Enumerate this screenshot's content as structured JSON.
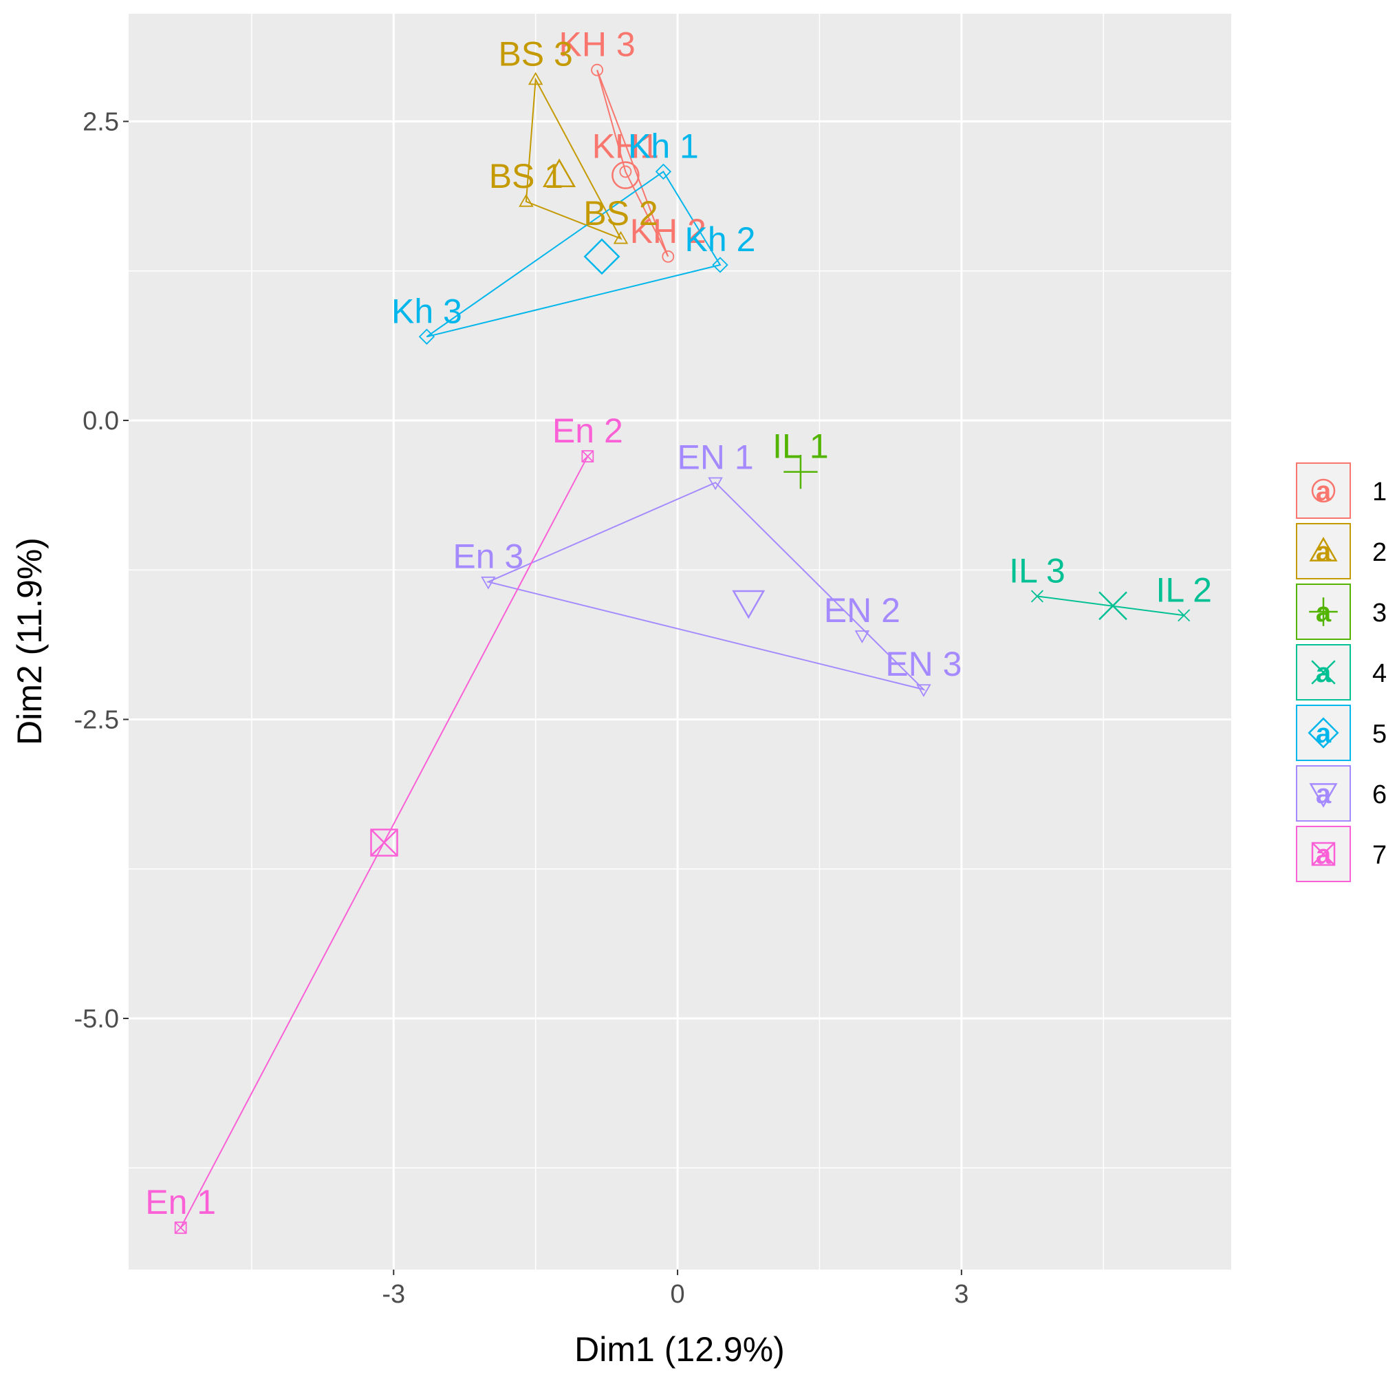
{
  "chart_data": {
    "type": "scatter",
    "title": "",
    "xlabel": "Dim1 (12.9%)",
    "ylabel": "Dim2 (11.9%)",
    "xlim": [
      -5.8,
      5.85
    ],
    "ylim": [
      -7.1,
      3.4
    ],
    "x_ticks": [
      -3,
      0,
      3
    ],
    "y_ticks": [
      2.5,
      0.0,
      -2.5,
      -5.0
    ],
    "x_tick_labels": [
      "-3",
      "0",
      "3"
    ],
    "y_tick_labels": [
      "2.5",
      "0.0",
      "-2.5",
      "-5.0"
    ],
    "grid": true,
    "legend_position": "right",
    "groups": [
      {
        "name": "1",
        "color": "#F8766D",
        "shape": "circle",
        "legend_letter": "a",
        "centroid": {
          "x": -0.55,
          "y": 2.05
        },
        "points": [
          {
            "label": "KH 3",
            "x": -0.85,
            "y": 2.93
          },
          {
            "label": "KH1",
            "x": -0.55,
            "y": 2.08
          },
          {
            "label": "KH 2",
            "x": -0.1,
            "y": 1.37
          }
        ]
      },
      {
        "name": "2",
        "color": "#C49A00",
        "shape": "triangle",
        "legend_letter": "a",
        "centroid": {
          "x": -1.25,
          "y": 2.05
        },
        "points": [
          {
            "label": "BS 3",
            "x": -1.5,
            "y": 2.85
          },
          {
            "label": "BS 1",
            "x": -1.6,
            "y": 1.83
          },
          {
            "label": "BS 2",
            "x": -0.6,
            "y": 1.52
          }
        ]
      },
      {
        "name": "3",
        "color": "#53B400",
        "shape": "plus",
        "legend_letter": "a",
        "centroid": {
          "x": 1.3,
          "y": -0.43
        },
        "points": [
          {
            "label": "IL 1",
            "x": 1.3,
            "y": -0.43
          }
        ]
      },
      {
        "name": "4",
        "color": "#00C094",
        "shape": "cross",
        "legend_letter": "a",
        "centroid": {
          "x": 4.6,
          "y": -1.55
        },
        "points": [
          {
            "label": "IL 3",
            "x": 3.8,
            "y": -1.47
          },
          {
            "label": "IL 2",
            "x": 5.35,
            "y": -1.63
          }
        ]
      },
      {
        "name": "5",
        "color": "#00B6EB",
        "shape": "diamond",
        "legend_letter": "a",
        "centroid": {
          "x": -0.8,
          "y": 1.37
        },
        "points": [
          {
            "label": "Kh 1",
            "x": -0.15,
            "y": 2.08
          },
          {
            "label": "Kh 2",
            "x": 0.45,
            "y": 1.3
          },
          {
            "label": "Kh 3",
            "x": -2.65,
            "y": 0.7
          }
        ]
      },
      {
        "name": "6",
        "color": "#A58AFF",
        "shape": "triangle-down",
        "legend_letter": "a",
        "centroid": {
          "x": 0.75,
          "y": -1.52
        },
        "points": [
          {
            "label": "EN 1",
            "x": 0.4,
            "y": -0.52
          },
          {
            "label": "En 3",
            "x": -2.0,
            "y": -1.35
          },
          {
            "label": "EN 2",
            "x": 1.95,
            "y": -1.8
          },
          {
            "label": "EN 3",
            "x": 2.6,
            "y": -2.25
          }
        ]
      },
      {
        "name": "7",
        "color": "#FB61D7",
        "shape": "square-x",
        "legend_letter": "a",
        "centroid": {
          "x": -3.1,
          "y": -3.53
        },
        "points": [
          {
            "label": "En 2",
            "x": -0.95,
            "y": -0.3
          },
          {
            "label": "En 1",
            "x": -5.25,
            "y": -6.75
          }
        ]
      }
    ]
  }
}
